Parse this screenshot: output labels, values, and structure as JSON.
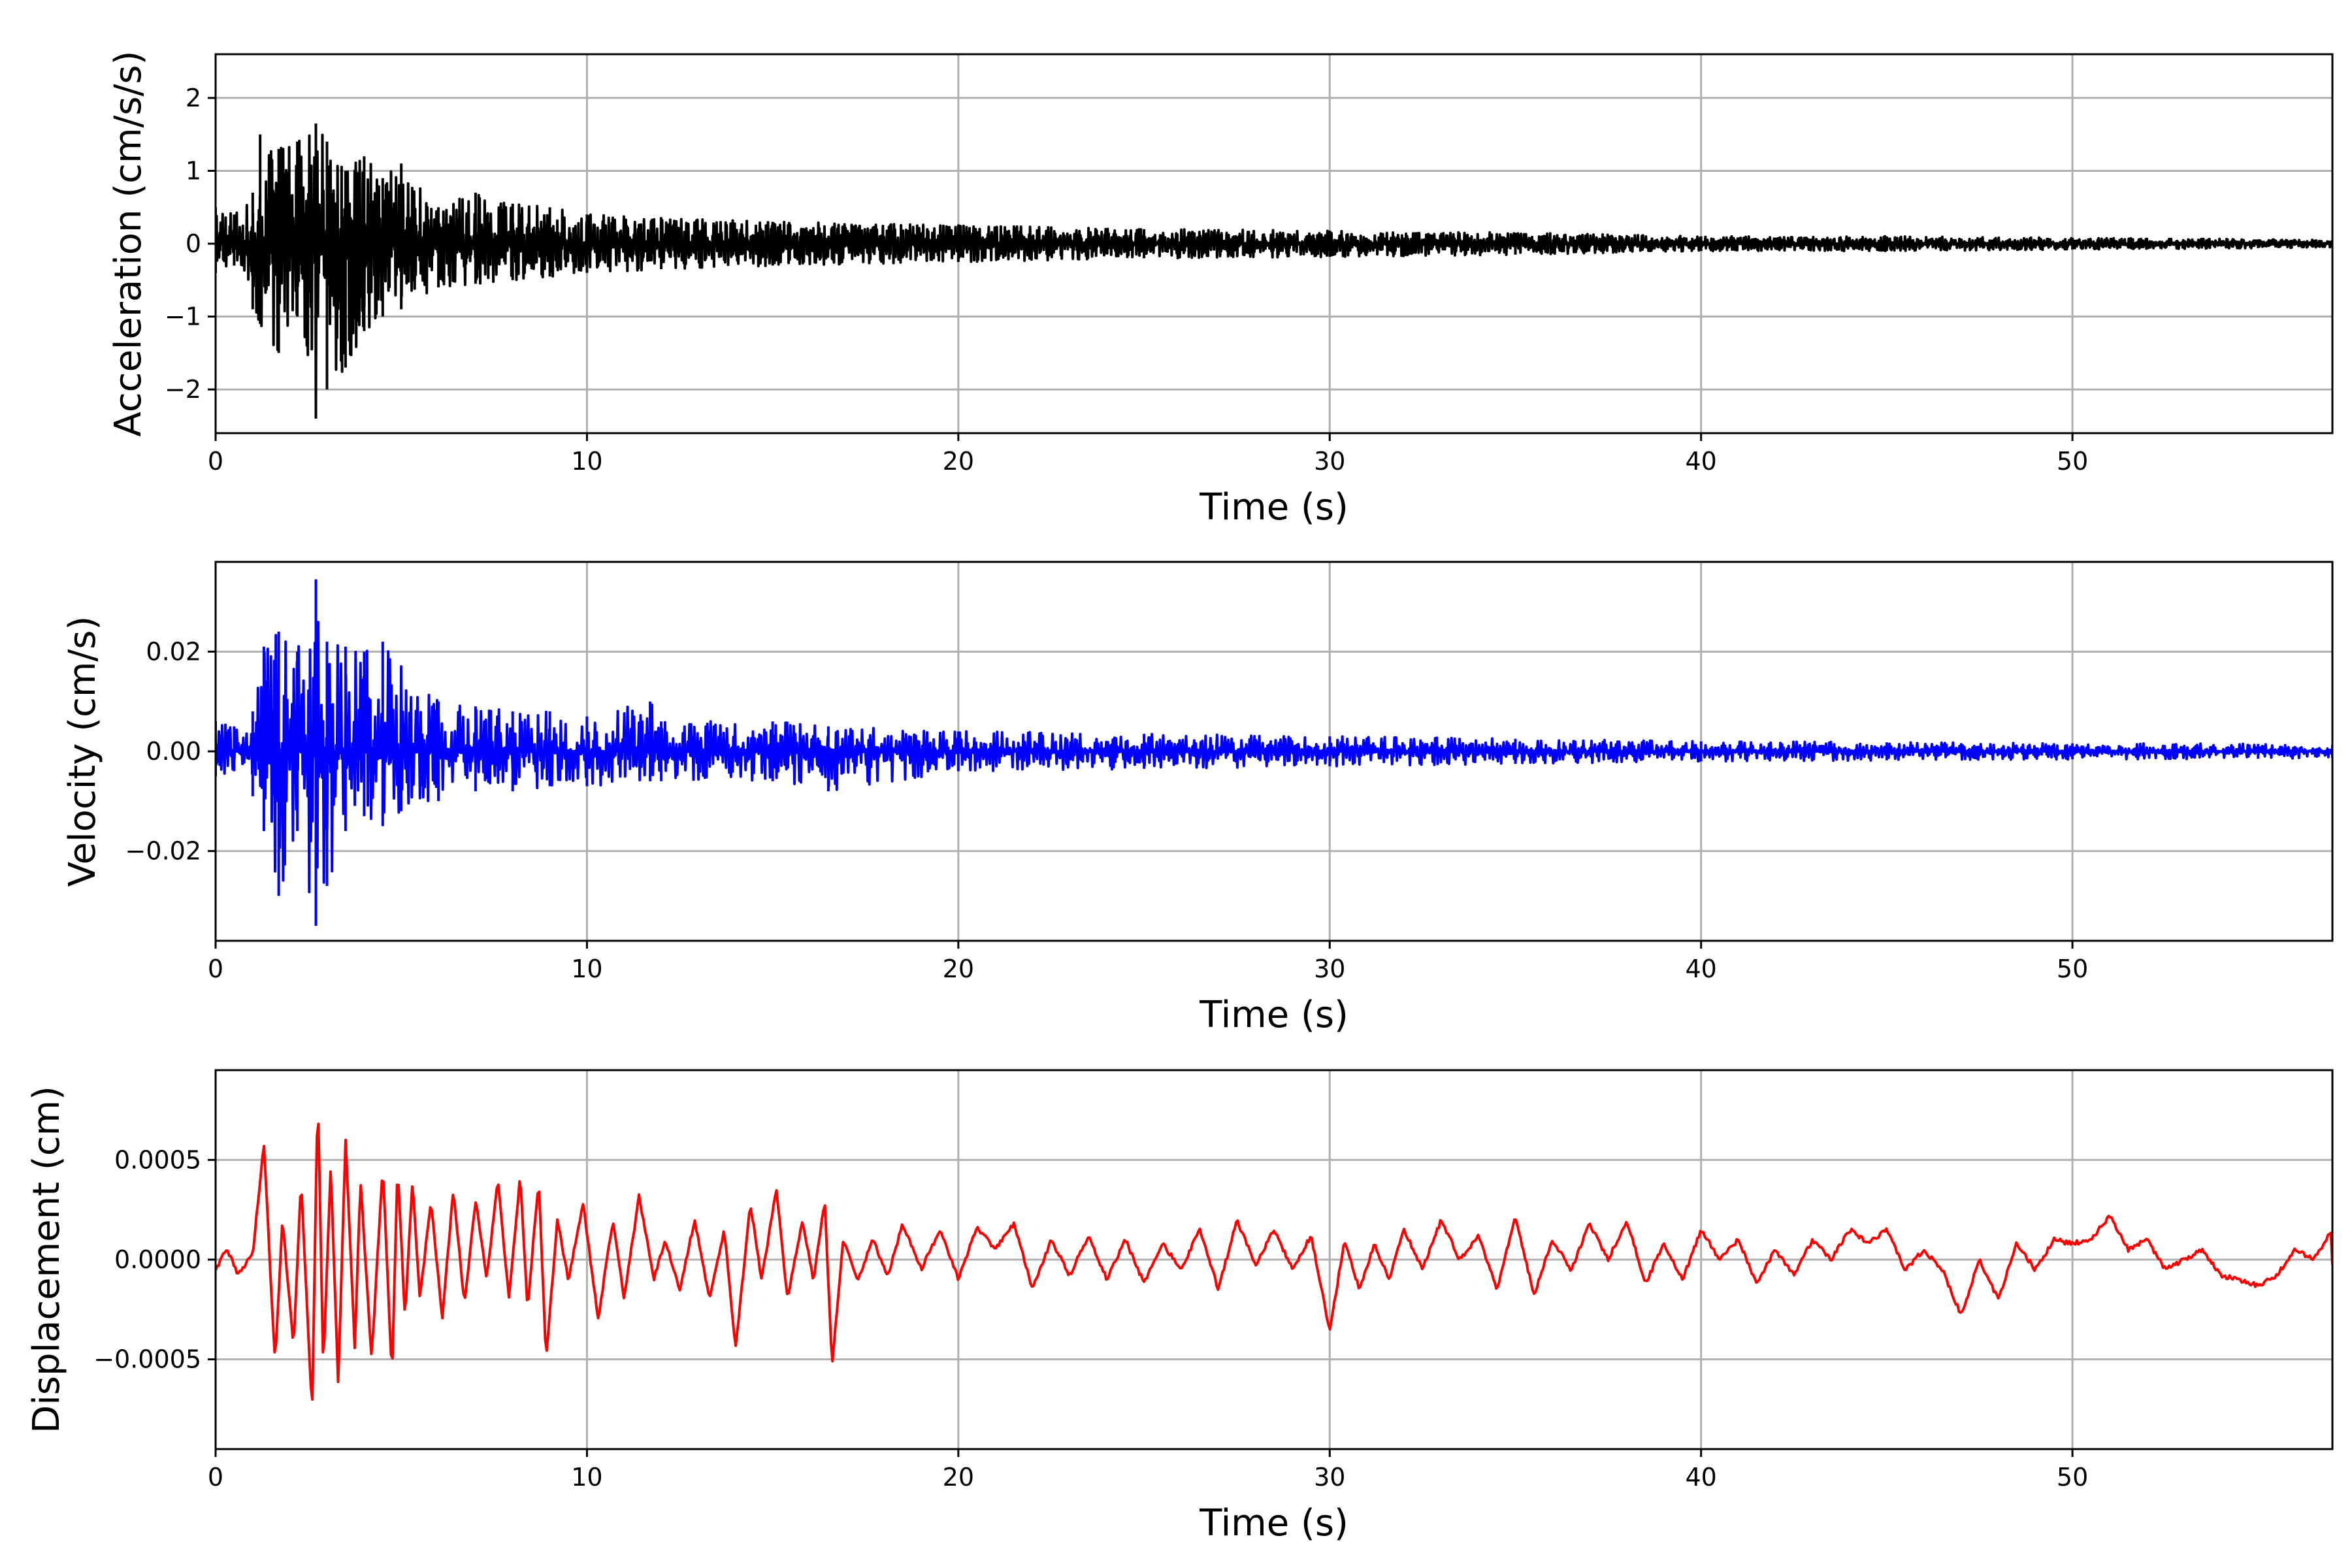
{
  "chart_data": [
    {
      "type": "line",
      "xlabel": "Time (s)",
      "ylabel": "Acceleration (cm/s/s)",
      "xlim": [
        0,
        57
      ],
      "ylim": [
        -2.6,
        2.6
      ],
      "xticks": [
        0,
        10,
        20,
        30,
        40,
        50
      ],
      "xtick_labels": [
        "0",
        "10",
        "20",
        "30",
        "40",
        "50"
      ],
      "yticks": [
        -2,
        -1,
        0,
        1,
        2
      ],
      "ytick_labels": [
        "−2",
        "−1",
        "0",
        "1",
        "2"
      ],
      "grid": true,
      "series": [
        {
          "color": "#000000",
          "envelope": {
            "t": [
              0,
              0.5,
              1.0,
              1.2,
              1.7,
              2.2,
              2.7,
              3.0,
              3.5,
              4.0,
              4.5,
              5.0,
              6.0,
              7.0,
              8.0,
              9.0,
              10.0,
              12.0,
              15.0,
              20.0,
              25.0,
              30.0,
              35.0,
              40.0,
              45.0,
              50.0,
              55.0,
              57.0
            ],
            "max": [
              0.5,
              0.4,
              0.7,
              1.5,
              1.3,
              1.4,
              1.65,
              1.4,
              1.0,
              1.2,
              0.9,
              1.1,
              0.5,
              0.7,
              0.55,
              0.5,
              0.4,
              0.35,
              0.3,
              0.25,
              0.2,
              0.18,
              0.15,
              0.1,
              0.1,
              0.08,
              0.06,
              0.05
            ],
            "min": [
              -0.4,
              -0.3,
              -0.9,
              -1.1,
              -1.5,
              -1.0,
              -2.4,
              -2.0,
              -1.7,
              -1.2,
              -1.0,
              -0.9,
              -0.6,
              -0.55,
              -0.5,
              -0.45,
              -0.4,
              -0.35,
              -0.3,
              -0.25,
              -0.2,
              -0.18,
              -0.15,
              -0.1,
              -0.1,
              -0.08,
              -0.06,
              -0.05
            ]
          }
        }
      ]
    },
    {
      "type": "line",
      "xlabel": "Time (s)",
      "ylabel": "Velocity (cm/s)",
      "xlim": [
        0,
        57
      ],
      "ylim": [
        -0.038,
        0.038
      ],
      "xticks": [
        0,
        10,
        20,
        30,
        40,
        50
      ],
      "xtick_labels": [
        "0",
        "10",
        "20",
        "30",
        "40",
        "50"
      ],
      "yticks": [
        -0.02,
        0,
        0.02
      ],
      "ytick_labels": [
        "−0.02",
        "0.00",
        "0.02"
      ],
      "grid": true,
      "series": [
        {
          "color": "#0000ff",
          "envelope": {
            "t": [
              0,
              0.5,
              1.0,
              1.3,
              1.7,
              2.2,
              2.7,
              3.0,
              3.5,
              4.0,
              4.5,
              5.0,
              6.0,
              7.0,
              8.0,
              9.0,
              10.0,
              11.7,
              12.0,
              15.0,
              16.5,
              20.0,
              25.0,
              30.0,
              35.0,
              40.0,
              45.0,
              50.0,
              55.0,
              57.0
            ],
            "max": [
              0.006,
              0.005,
              0.008,
              0.021,
              0.024,
              0.02,
              0.0345,
              0.022,
              0.021,
              0.02,
              0.022,
              0.017,
              0.01,
              0.009,
              0.008,
              0.008,
              0.007,
              0.01,
              0.006,
              0.006,
              0.005,
              0.004,
              0.0035,
              0.003,
              0.0025,
              0.002,
              0.0018,
              0.0016,
              0.0015,
              0.0013
            ],
            "min": [
              -0.005,
              -0.004,
              -0.009,
              -0.016,
              -0.029,
              -0.016,
              -0.035,
              -0.027,
              -0.016,
              -0.013,
              -0.015,
              -0.012,
              -0.01,
              -0.008,
              -0.008,
              -0.007,
              -0.007,
              -0.006,
              -0.006,
              -0.006,
              -0.008,
              -0.004,
              -0.0035,
              -0.003,
              -0.0025,
              -0.002,
              -0.0018,
              -0.0016,
              -0.0015,
              -0.0013
            ]
          }
        }
      ]
    },
    {
      "type": "line",
      "xlabel": "Time (s)",
      "ylabel": "Displacement (cm)",
      "xlim": [
        0,
        57
      ],
      "ylim": [
        -0.00095,
        0.00095
      ],
      "xticks": [
        0,
        10,
        20,
        30,
        40,
        50
      ],
      "xtick_labels": [
        "0",
        "10",
        "20",
        "30",
        "40",
        "50"
      ],
      "yticks": [
        -0.0005,
        0,
        0.0005
      ],
      "ytick_labels": [
        "−0.0005",
        "0.0000",
        "0.0005"
      ],
      "grid": true,
      "series": [
        {
          "color": "#ff0000",
          "points": {
            "t": [
              0,
              0.3,
              0.6,
              1.0,
              1.3,
              1.6,
              1.8,
              2.1,
              2.3,
              2.6,
              2.75,
              2.9,
              3.1,
              3.3,
              3.5,
              3.75,
              3.9,
              4.2,
              4.5,
              4.75,
              4.9,
              5.1,
              5.3,
              5.5,
              5.8,
              6.1,
              6.4,
              6.7,
              7.0,
              7.3,
              7.6,
              7.9,
              8.2,
              8.4,
              8.7,
              8.9,
              9.2,
              9.5,
              9.9,
              10.3,
              10.7,
              11.0,
              11.4,
              11.8,
              12.1,
              12.5,
              12.9,
              13.3,
              13.7,
              14.0,
              14.4,
              14.7,
              15.1,
              15.4,
              15.8,
              16.1,
              16.4,
              16.6,
              16.9,
              17.3,
              17.7,
              18.1,
              18.5,
              19.0,
              19.5,
              20.0,
              20.5,
              21.0,
              21.5,
              22.0,
              22.5,
              23.0,
              23.5,
              24.0,
              24.5,
              25.0,
              25.5,
              26.0,
              26.5,
              27.0,
              27.5,
              28.0,
              28.5,
              29.0,
              29.5,
              30.0,
              30.4,
              30.8,
              31.2,
              31.6,
              32.0,
              32.5,
              33.0,
              33.5,
              34.0,
              34.5,
              35.0,
              35.5,
              36.0,
              36.5,
              37.0,
              37.5,
              38.0,
              38.5,
              39.0,
              39.5,
              40.0,
              40.5,
              41.0,
              41.5,
              42.0,
              42.5,
              43.0,
              43.5,
              44.0,
              44.5,
              45.0,
              45.5,
              46.0,
              46.5,
              47.0,
              47.5,
              48.0,
              48.5,
              49.0,
              49.5,
              50.0,
              50.5,
              51.0,
              51.5,
              52.0,
              52.5,
              53.0,
              53.5,
              54.0,
              54.5,
              55.0,
              55.5,
              56.0,
              56.5,
              57.0
            ],
            "v": [
              -5e-05,
              6e-05,
              -8e-05,
              3e-05,
              0.00058,
              -0.00052,
              0.0002,
              -0.00044,
              0.00041,
              -0.00077,
              0.00086,
              -0.00055,
              0.00048,
              -0.00063,
              0.0006,
              -0.00045,
              0.0004,
              -0.0005,
              0.00047,
              -0.00058,
              0.00048,
              -0.0003,
              0.0004,
              -0.0002,
              0.0003,
              -0.0003,
              0.00035,
              -0.00022,
              0.0003,
              -0.0001,
              0.0004,
              -0.0002,
              0.00042,
              -0.00025,
              0.0004,
              -0.0005,
              0.0002,
              -0.0001,
              0.00028,
              -0.0003,
              0.0002,
              -0.0002,
              0.00032,
              -0.0001,
              0.0001,
              -0.00015,
              0.0002,
              -0.0002,
              0.00015,
              -0.00045,
              0.00028,
              -0.0001,
              0.00035,
              -0.0002,
              0.0002,
              -0.0001,
              0.0003,
              -0.00053,
              0.0001,
              -0.0001,
              0.0001,
              -8e-05,
              0.00018,
              -5e-05,
              0.00015,
              -0.0001,
              0.00016,
              5e-05,
              0.00018,
              -0.00015,
              0.0001,
              -8e-05,
              0.00012,
              -0.0001,
              0.0001,
              -0.00012,
              8e-05,
              -5e-05,
              0.00015,
              -0.00015,
              0.0002,
              -3e-05,
              0.00015,
              -5e-05,
              0.00012,
              -0.00036,
              0.0001,
              -0.00015,
              8e-05,
              -0.0001,
              0.00015,
              -5e-05,
              0.0002,
              0.0,
              0.00012,
              -0.00015,
              0.00022,
              -0.00018,
              0.0001,
              -5e-05,
              0.00018,
              0.0,
              0.0002,
              -0.00012,
              8e-05,
              -0.0001,
              0.00015,
              0.0,
              0.0001,
              -0.00012,
              5e-05,
              -8e-05,
              0.0001,
              0.0,
              0.00015,
              8e-05,
              0.00015,
              -5e-05,
              5e-05,
              -5e-05,
              -0.00028,
              0.0,
              -0.0002,
              8e-05,
              -5e-05,
              0.0001,
              8e-05,
              0.0001,
              0.00022,
              5e-05,
              0.0001,
              -5e-05,
              0.0,
              5e-05,
              -8e-05,
              -0.0001,
              -0.00013,
              -8e-05,
              5e-05,
              0.0,
              0.00015,
              0.00022,
              0.00012,
              -2e-05
            ]
          }
        }
      ]
    }
  ]
}
